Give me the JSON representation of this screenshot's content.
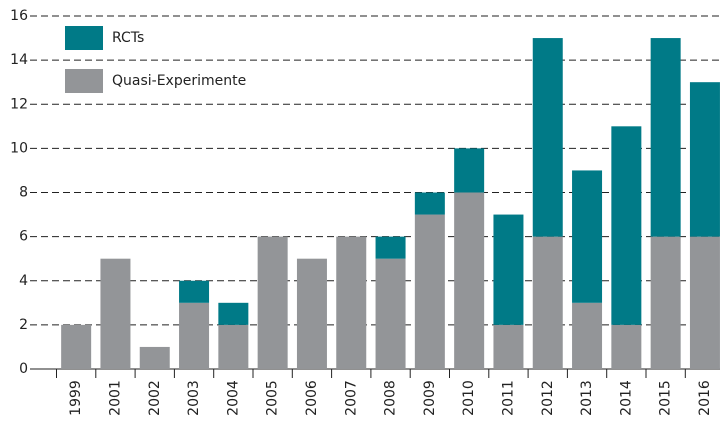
{
  "chart_data": {
    "type": "stacked_bar",
    "categories": [
      "1999",
      "2001",
      "2002",
      "2003",
      "2004",
      "2005",
      "2006",
      "2007",
      "2008",
      "2009",
      "2010",
      "2011",
      "2012",
      "2013",
      "2014",
      "2015",
      "2016"
    ],
    "series": [
      {
        "name": "Quasi-Experimente",
        "color": "#939598",
        "values": [
          2,
          5,
          1,
          3,
          2,
          6,
          5,
          6,
          5,
          7,
          8,
          2,
          6,
          3,
          2,
          6,
          6
        ]
      },
      {
        "name": "RCTs",
        "color": "#007a87",
        "values": [
          0,
          0,
          0,
          1,
          1,
          0,
          0,
          0,
          1,
          1,
          2,
          5,
          9,
          6,
          9,
          9,
          7
        ]
      }
    ],
    "ylim": [
      0,
      16
    ],
    "yticks": [
      0,
      2,
      4,
      6,
      8,
      10,
      12,
      14,
      16
    ],
    "grid": true
  }
}
